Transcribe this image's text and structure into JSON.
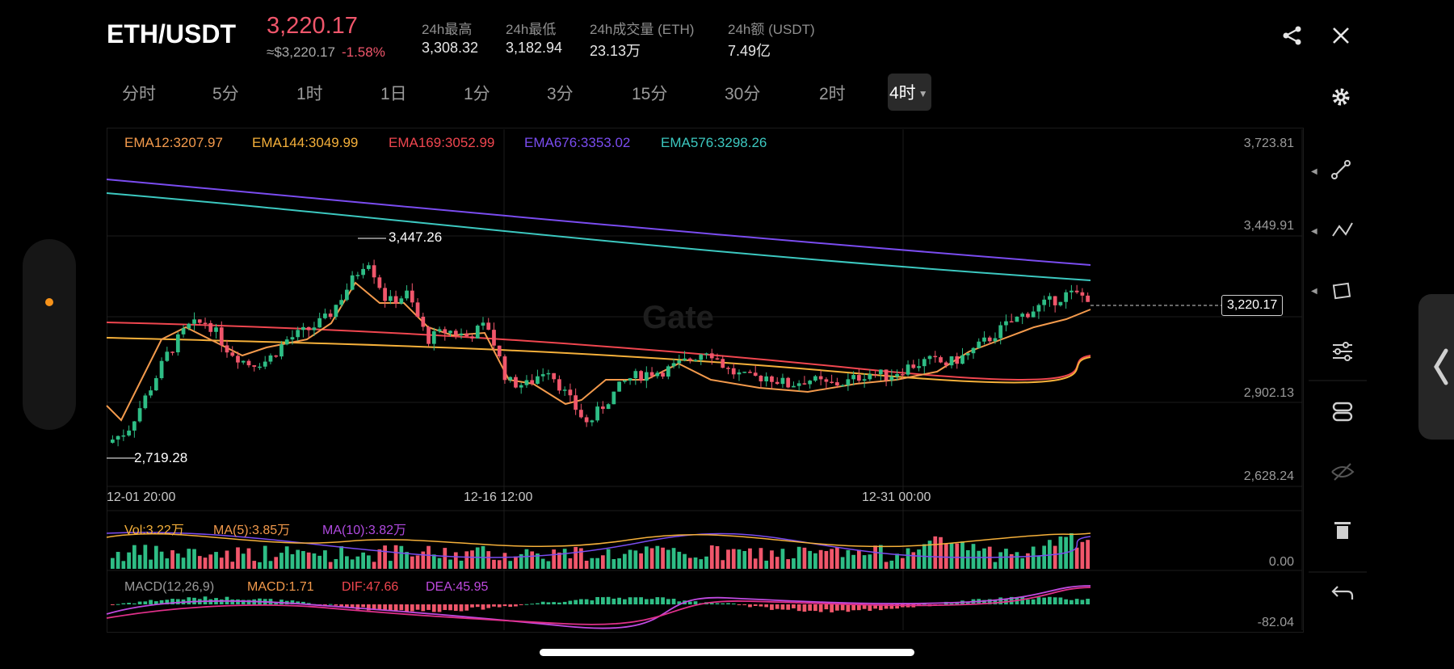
{
  "header": {
    "pair": "ETH/USDT",
    "price": "3,220.17",
    "price_usd": "≈$3,220.17",
    "change": "-1.58%",
    "stats": [
      {
        "label": "24h最高",
        "value": "3,308.32"
      },
      {
        "label": "24h最低",
        "value": "3,182.94"
      },
      {
        "label": "24h成交量 (ETH)",
        "value": "23.13万"
      },
      {
        "label": "24h额 (USDT)",
        "value": "7.49亿"
      }
    ]
  },
  "timeframes": [
    "分时",
    "5分",
    "1时",
    "1日",
    "1分",
    "3分",
    "15分",
    "30分",
    "2时",
    "4时"
  ],
  "active_timeframe": "4时",
  "ema_legend": [
    {
      "text": "EMA12:3207.97",
      "color": "#f39a4c"
    },
    {
      "text": "EMA144:3049.99",
      "color": "#f5b03a"
    },
    {
      "text": "EMA169:3052.99",
      "color": "#f0464f"
    },
    {
      "text": "EMA676:3353.02",
      "color": "#7a4cf0"
    },
    {
      "text": "EMA576:3298.26",
      "color": "#3cc8c0"
    }
  ],
  "chart": {
    "high_marker": "3,447.26",
    "low_marker": "2,719.28",
    "last_price_label": "3,220.17",
    "y_ticks": [
      "3,723.81",
      "3,449.91",
      "2,902.13",
      "2,628.24"
    ],
    "x_ticks": [
      "12-01 20:00",
      "12-16 12:00",
      "12-31 00:00"
    ],
    "watermark": "Gate"
  },
  "volume": {
    "vol": "Vol:3.22万",
    "ma5": "MA(5):3.85万",
    "ma10": "MA(10):3.82万",
    "axis": "0.00"
  },
  "macd": {
    "name": "MACD(12,26,9)",
    "macd": "MACD:1.71",
    "dif": "DIF:47.66",
    "dea": "DEA:45.95",
    "axis": "-82.04"
  },
  "chart_data": {
    "type": "candlestick",
    "symbol": "ETH/USDT",
    "interval": "4时",
    "ylim": [
      2628.24,
      3723.81
    ],
    "x_ticks": [
      "12-01 20:00",
      "12-16 12:00",
      "12-31 00:00"
    ],
    "marked_high": 3447.26,
    "marked_low": 2719.28,
    "last": 3220.17,
    "approx_close_path": [
      2740,
      2780,
      2900,
      3030,
      3120,
      3140,
      3050,
      3000,
      3010,
      3080,
      3110,
      3150,
      3250,
      3350,
      3200,
      3230,
      3080,
      3110,
      3090,
      3130,
      2940,
      2930,
      2990,
      2890,
      2800,
      2880,
      2950,
      2970,
      2980,
      3010,
      3050,
      2980,
      2950,
      2960,
      2930,
      2950,
      2930,
      2940,
      2970,
      2960,
      2990,
      3010,
      3000,
      3030,
      3080,
      3130,
      3170,
      3200,
      3230,
      3220
    ],
    "series": [
      {
        "name": "EMA12",
        "color": "#f39a4c",
        "last": 3207.97
      },
      {
        "name": "EMA144",
        "color": "#f5b03a",
        "last": 3049.99
      },
      {
        "name": "EMA169",
        "color": "#f0464f",
        "last": 3052.99
      },
      {
        "name": "EMA676",
        "color": "#7a4cf0",
        "last": 3353.02
      },
      {
        "name": "EMA576",
        "color": "#3cc8c0",
        "last": 3298.26
      }
    ],
    "up_color": "#2ebd85",
    "down_color": "#f0566b"
  },
  "colors": {
    "up": "#2ebd85",
    "down": "#f0566b",
    "accent": "#f7931a"
  },
  "toolbar": [
    "line-tool-icon",
    "trend-tool-icon",
    "shape-tool-icon",
    "settings-sliders-icon",
    "indicator-icon",
    "hide-icon",
    "trash-icon",
    "undo-icon"
  ]
}
